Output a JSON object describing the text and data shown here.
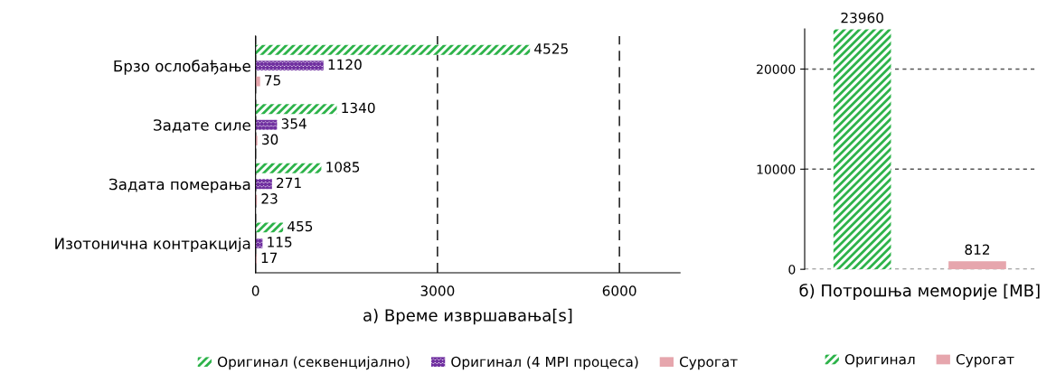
{
  "chart_data": [
    {
      "type": "bar",
      "orientation": "horizontal",
      "xlabel": "а) Време извршавања[s]",
      "categories": [
        "Брзо ослобађање",
        "Задате силе",
        "Задата померања",
        "Изотонична контракција"
      ],
      "series": [
        {
          "name": "Оригинал (секвенцијално)",
          "color": "#2db34a",
          "values": [
            4525,
            1340,
            1085,
            455
          ]
        },
        {
          "name": "Оригинал (4 MPI процеса)",
          "color": "#7030a0",
          "values": [
            1120,
            354,
            271,
            115
          ]
        },
        {
          "name": "Сурогат",
          "color": "#e6a6ad",
          "values": [
            75,
            30,
            23,
            17
          ]
        }
      ],
      "xlim": [
        0,
        7000
      ],
      "xticks": [
        0,
        3000,
        6000
      ],
      "grid": "x",
      "legend": "bottom",
      "data_labels": true
    },
    {
      "type": "bar",
      "xlabel": "б) Потрошња меморије [MB]",
      "categories": [
        null,
        null
      ],
      "series": [
        {
          "name": "Оригинал",
          "color": "#2db34a",
          "values": [
            23960,
            null
          ]
        },
        {
          "name": "Сурогат",
          "color": "#e6a6ad",
          "values": [
            null,
            812
          ]
        }
      ],
      "ylim": [
        0,
        24000
      ],
      "yticks": [
        0,
        10000,
        20000
      ],
      "grid": "y",
      "legend": "bottom",
      "data_labels": true
    }
  ]
}
